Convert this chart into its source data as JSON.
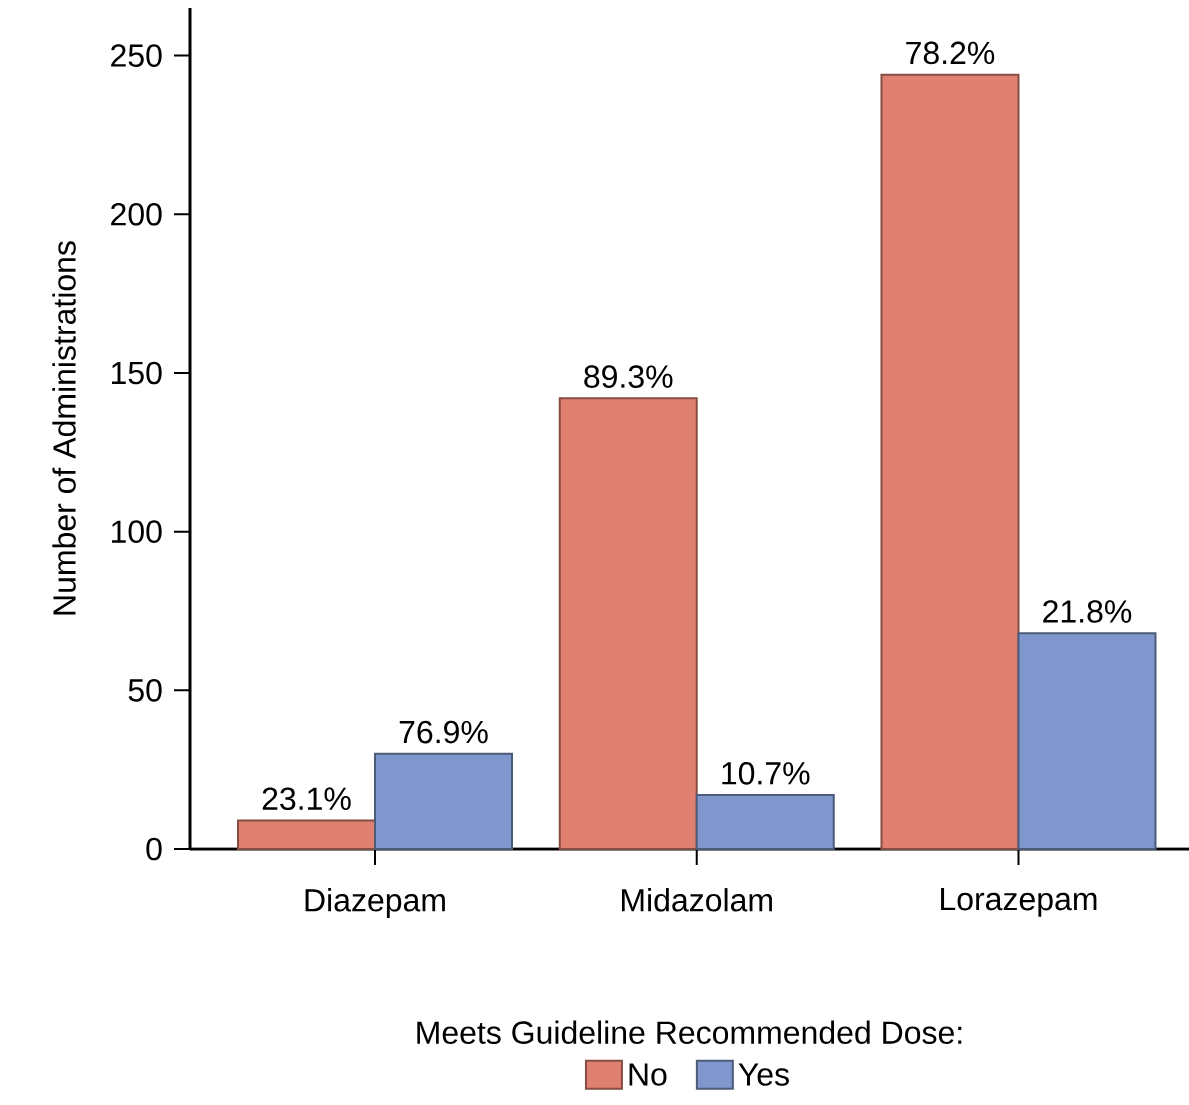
{
  "chart_data": {
    "type": "bar",
    "ylabel": "Number of Administrations",
    "legend_title": "Meets Guideline Recommended Dose:",
    "legend": "bottom",
    "categories": [
      "Diazepam",
      "Midazolam",
      "Lorazepam"
    ],
    "series": [
      {
        "name": "No",
        "color": "#e08070",
        "values": [
          9,
          142,
          244
        ]
      },
      {
        "name": "Yes",
        "color": "#7f97cc",
        "values": [
          30,
          17,
          68
        ]
      }
    ],
    "annotations": [
      {
        "text": "23.1%",
        "x": "Diazepam",
        "y": 9
      },
      {
        "text": "89.3%",
        "x": "Midazolam",
        "y": 142
      },
      {
        "text": "78.2%",
        "x": "Lorazepam",
        "y": 244
      },
      {
        "text": "76.9%",
        "x": "Diazepam",
        "y": 30
      },
      {
        "text": "10.7%",
        "x": "Midazolam",
        "y": 17
      },
      {
        "text": "21.8%",
        "x": "Lorazepam",
        "y": 68
      }
    ],
    "ylim": [
      0,
      265
    ],
    "yticks": [
      0,
      50,
      100,
      150,
      200,
      250
    ]
  }
}
